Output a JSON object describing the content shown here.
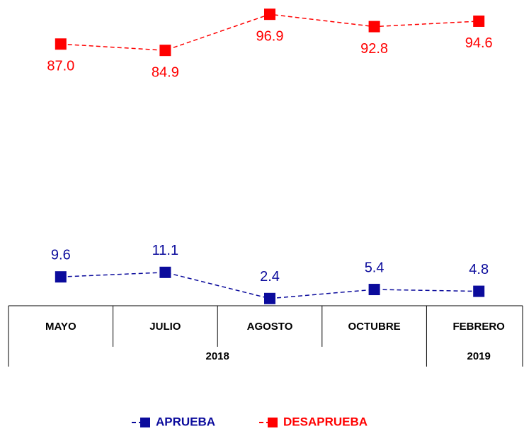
{
  "chart_data": {
    "type": "line",
    "categories": [
      "MAYO",
      "JULIO",
      "AGOSTO",
      "OCTUBRE",
      "FEBRERO"
    ],
    "year_labels": [
      "2018",
      "2019"
    ],
    "series": [
      {
        "name": "APRUEBA",
        "color": "#0b0b9c",
        "values": [
          9.6,
          11.1,
          2.4,
          5.4,
          4.8
        ],
        "value_labels": [
          "9.6",
          "11.1",
          "2.4",
          "5.4",
          "4.8"
        ]
      },
      {
        "name": "DESAPRUEBA",
        "color": "#ff0000",
        "values": [
          87.0,
          84.9,
          96.9,
          92.8,
          94.6
        ],
        "value_labels": [
          "87.0",
          "84.9",
          "96.9",
          "92.8",
          "94.6"
        ]
      }
    ],
    "ylim": [
      0,
      100
    ]
  }
}
